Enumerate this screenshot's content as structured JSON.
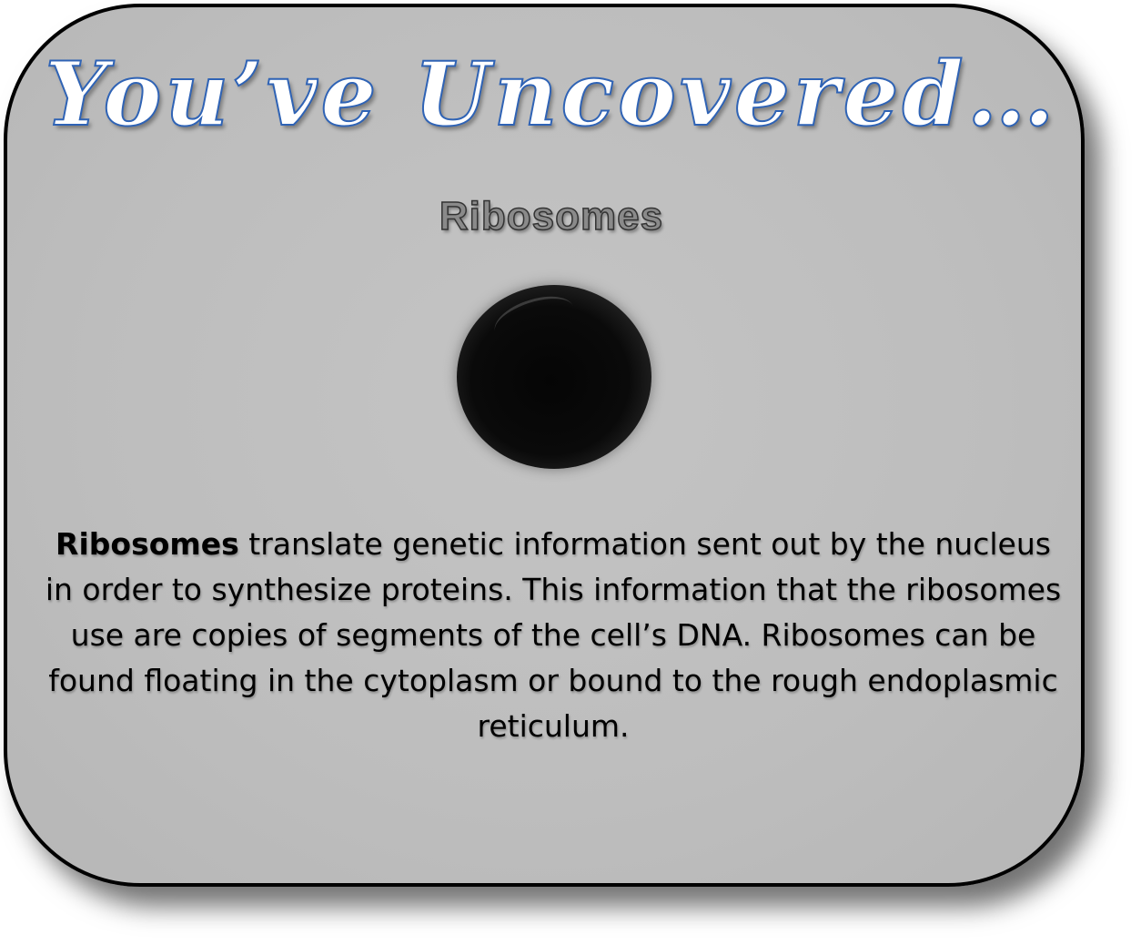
{
  "card": {
    "heading": "You’ve Uncovered…",
    "subtitle": "Ribosomes",
    "figure_icon": "ribosome-dark-sphere",
    "description": {
      "bold_term": "Ribosomes",
      "body": " translate genetic information sent out by the nucleus in order to synthesize proteins. This information that the ribosomes use are copies of segments of the cell’s DNA. Ribosomes can be found floating in the cytoplasm or bound to the rough endoplasmic reticulum."
    }
  },
  "colors": {
    "card_background": "#bdbdbd",
    "card_border": "#000000",
    "heading_fill": "#ffffff",
    "heading_outline": "#2f63b5",
    "subtitle_fill": "#8a8a8a",
    "text": "#000000"
  }
}
